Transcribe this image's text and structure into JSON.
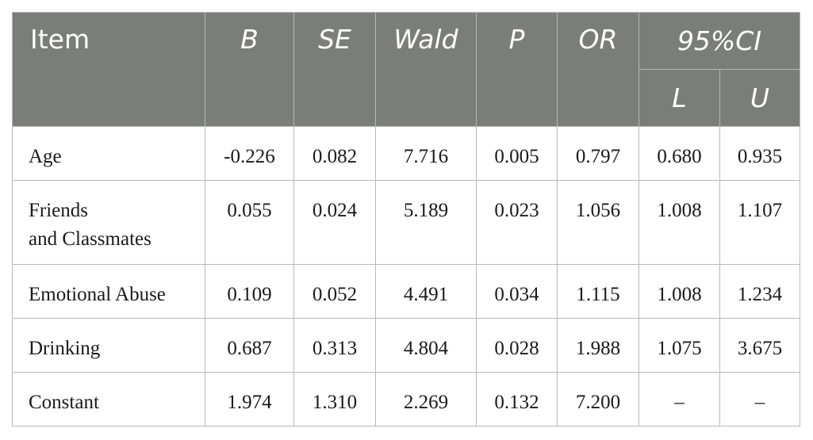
{
  "table": {
    "headers": {
      "item": "Item",
      "b": "B",
      "se": "SE",
      "wald": "Wald",
      "p": "P",
      "or": "OR",
      "ci": "95%CI",
      "ci_lower": "L",
      "ci_upper": "U"
    },
    "rows": [
      {
        "item": "Age",
        "item_line2": "",
        "b": "-0.226",
        "se": "0.082",
        "wald": "7.716",
        "p": "0.005",
        "or": "0.797",
        "l": "0.680",
        "u": "0.935"
      },
      {
        "item": "Friends",
        "item_line2": "and Classmates",
        "b": "0.055",
        "se": "0.024",
        "wald": "5.189",
        "p": "0.023",
        "or": "1.056",
        "l": "1.008",
        "u": "1.107"
      },
      {
        "item": "Emotional Abuse",
        "item_line2": "",
        "b": "0.109",
        "se": "0.052",
        "wald": "4.491",
        "p": "0.034",
        "or": "1.115",
        "l": "1.008",
        "u": "1.234"
      },
      {
        "item": "Drinking",
        "item_line2": "",
        "b": "0.687",
        "se": "0.313",
        "wald": "4.804",
        "p": "0.028",
        "or": "1.988",
        "l": "1.075",
        "u": "3.675"
      },
      {
        "item": "Constant",
        "item_line2": "",
        "b": "1.974",
        "se": "1.310",
        "wald": "2.269",
        "p": "0.132",
        "or": "7.200",
        "l": "–",
        "u": "–"
      }
    ]
  }
}
